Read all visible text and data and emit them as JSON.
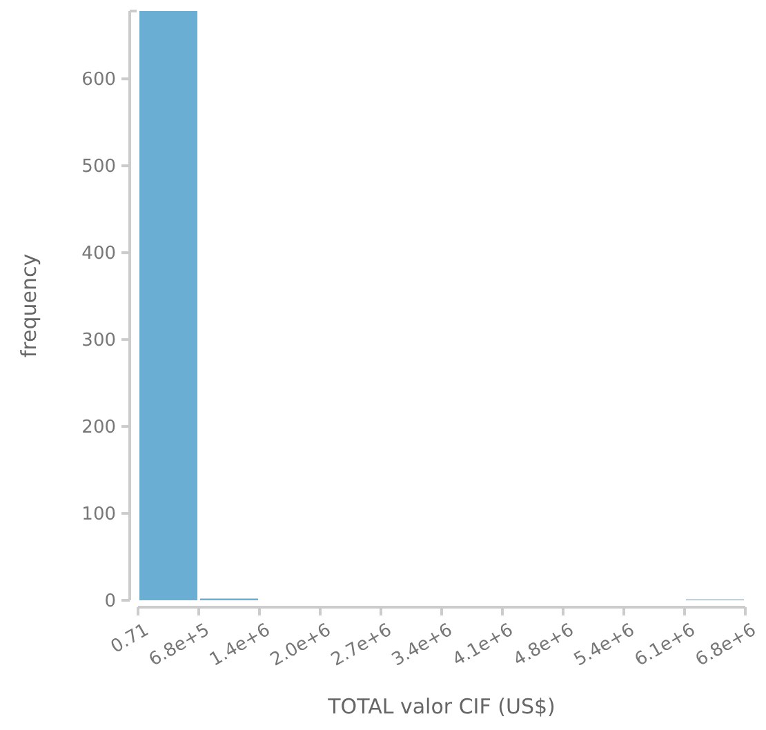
{
  "chart_data": {
    "type": "histogram",
    "xlabel": "TOTAL valor CIF (US$)",
    "ylabel": "frequency",
    "color": "#6aafd3",
    "bins": [
      0.71,
      680000,
      1360000,
      2040000,
      2720000,
      3400000,
      4080000,
      4760000,
      5440000,
      6120000,
      6800000
    ],
    "values": [
      678,
      2,
      0,
      0,
      0,
      0,
      0,
      0,
      0,
      1
    ],
    "xlim": [
      0.71,
      6800000
    ],
    "xticks": [
      0.71,
      {
        "value": 680000,
        "label": "6.8e+5"
      },
      {
        "value": 1360000,
        "label": "1.4e+6"
      },
      {
        "value": 2040000,
        "label": "2.0e+6"
      },
      {
        "value": 2720000,
        "label": "2.7e+6"
      },
      {
        "value": 3400000,
        "label": "3.4e+6"
      },
      {
        "value": 4080000,
        "label": "4.1e+6"
      },
      {
        "value": 4760000,
        "label": "4.8e+6"
      },
      {
        "value": 5440000,
        "label": "5.4e+6"
      },
      {
        "value": 6120000,
        "label": "6.1e+6"
      },
      {
        "value": 6800000,
        "label": "6.8e+6"
      }
    ],
    "ylim": [
      0,
      678
    ],
    "yticks": [
      0,
      100,
      200,
      300,
      400,
      500,
      600
    ],
    "grid": false
  }
}
